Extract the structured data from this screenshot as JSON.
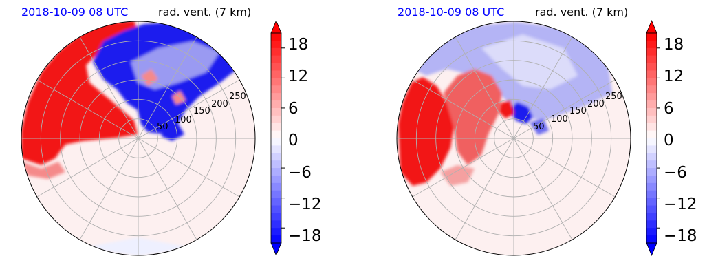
{
  "chart_data": [
    {
      "type": "heatmap",
      "projection": "polar",
      "title_left": "2018-10-09 08 UTC",
      "title_right": "rad. vent. (7 km)",
      "range_rings": [
        "50",
        "100",
        "150",
        "200",
        "250"
      ],
      "colorbar": {
        "ticks": [
          "18",
          "12",
          "6",
          "0",
          "−6",
          "−12",
          "−18"
        ],
        "range": [
          -21,
          21
        ],
        "extend": "both",
        "levels": 28
      },
      "regions": [
        {
          "sign": "positive",
          "description_value": 20
        },
        {
          "sign": "negative",
          "description_value": -20
        }
      ]
    },
    {
      "type": "heatmap",
      "projection": "polar",
      "title_left": "2018-10-09 08 UTC",
      "title_right": "rad. vent. (7 km)",
      "range_rings": [
        "50",
        "100",
        "150",
        "200",
        "250"
      ],
      "colorbar": {
        "ticks": [
          "18",
          "12",
          "6",
          "0",
          "−6",
          "−12",
          "−18"
        ],
        "range": [
          -21,
          21
        ],
        "extend": "both",
        "levels": 28
      }
    }
  ],
  "colors": {
    "positive": "#ff0000",
    "negative": "#0000ff",
    "zero": "#ffffff",
    "grid": "#b0b0b0",
    "title_left": "#0000ff"
  }
}
